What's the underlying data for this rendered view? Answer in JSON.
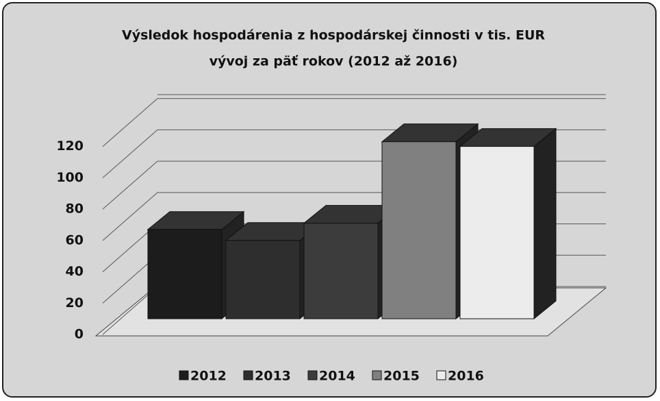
{
  "chart_data": {
    "type": "bar3d",
    "title": "Výsledok hospodárenia z hospodárskej činnosti v tis. EUR",
    "subtitle": "vývoj za päť rokov (2012 až 2016)",
    "series": [
      {
        "name": "2012",
        "color": "#1c1c1c",
        "values": [
          57
        ]
      },
      {
        "name": "2013",
        "color": "#2e2e2e",
        "values": [
          50
        ]
      },
      {
        "name": "2014",
        "color": "#3c3c3c",
        "values": [
          61
        ]
      },
      {
        "name": "2015",
        "color": "#808080",
        "values": [
          113
        ]
      },
      {
        "name": "2016",
        "color": "#ececec",
        "values": [
          110
        ]
      }
    ],
    "ylim": [
      0,
      140
    ],
    "yticks": [
      0,
      20,
      40,
      60,
      80,
      100,
      120
    ],
    "grid": true,
    "legend": "bottom"
  }
}
